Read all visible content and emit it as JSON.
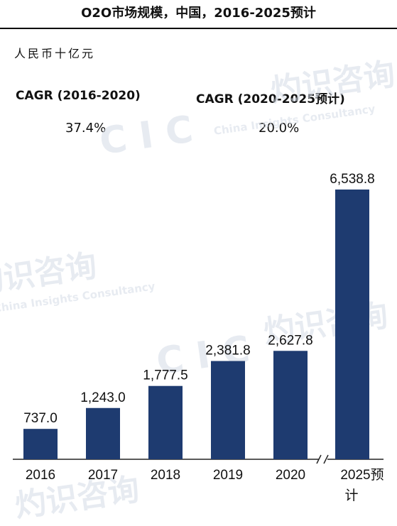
{
  "chart_data": {
    "type": "bar",
    "title": "O2O市场规模，中国，2016-2025预计",
    "unit_label": "人民币十亿元",
    "categories": [
      "2016",
      "2017",
      "2018",
      "2019",
      "2020",
      "2025预计"
    ],
    "values": [
      737.0,
      1243.0,
      1777.5,
      2381.8,
      2627.8,
      6538.8
    ],
    "value_labels": [
      "737.0",
      "1,243.0",
      "1,777.5",
      "2,381.8",
      "2,627.8",
      "6,538.8"
    ],
    "cagr": [
      {
        "label": "CAGR (2016-2020)",
        "value": "37.4%"
      },
      {
        "label": "CAGR (2020-2025预计)",
        "value": "20.0%"
      }
    ],
    "axis_break_between": [
      "2020",
      "2025预计"
    ],
    "bar_color": "#1e3b70",
    "ylim": [
      0,
      6538.8
    ]
  },
  "watermark": {
    "cn": "灼识咨询",
    "en": "China Insights Consultancy",
    "logo": "CIC"
  }
}
